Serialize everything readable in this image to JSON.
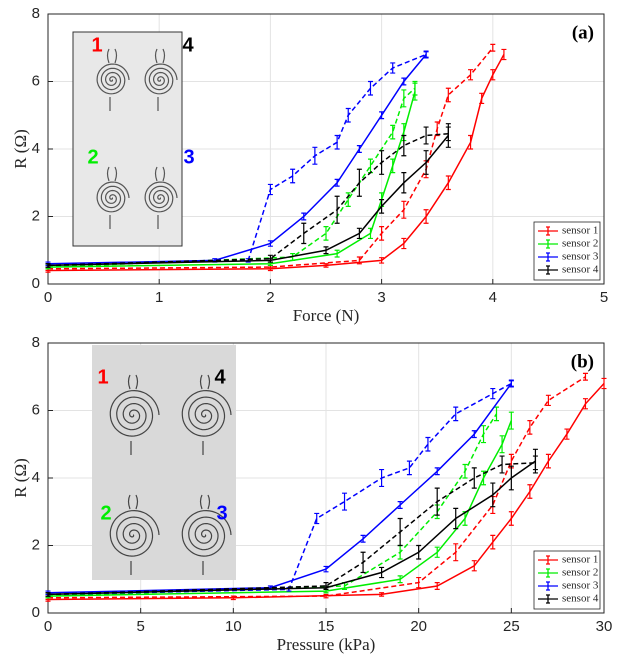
{
  "chart_data": [
    {
      "type": "line",
      "panel_label": "(a)",
      "xlabel": "Force (N)",
      "ylabel": "R (Ω)",
      "xlim": [
        0,
        5
      ],
      "ylim": [
        0,
        8
      ],
      "xticks": [
        0,
        1,
        2,
        3,
        4,
        5
      ],
      "yticks": [
        0,
        2,
        4,
        6,
        8
      ],
      "grid": true,
      "legend": "lower right",
      "inset_labels": [
        "1",
        "4",
        "2",
        "3"
      ],
      "inset_label_series": [
        0,
        3,
        1,
        2
      ],
      "series": [
        {
          "name": "sensor 1",
          "color": "#ff0000",
          "loading": {
            "x": [
              0,
              2,
              2.5,
              3,
              3.2,
              3.4,
              3.6,
              3.8,
              3.9,
              4.0,
              4.1
            ],
            "values": [
              0.4,
              0.45,
              0.55,
              0.7,
              1.2,
              2,
              3,
              4.2,
              5.5,
              6.2,
              6.8
            ],
            "errors": [
              0.05,
              0.05,
              0.05,
              0.08,
              0.15,
              0.2,
              0.2,
              0.2,
              0.15,
              0.15,
              0.15
            ]
          },
          "unloading": {
            "x": [
              0,
              2,
              2.8,
              3.0,
              3.2,
              3.4,
              3.5,
              3.6,
              3.8,
              4.0
            ],
            "values": [
              0.45,
              0.5,
              0.7,
              1.5,
              2.2,
              3.4,
              4.6,
              5.6,
              6.2,
              7.0
            ],
            "errors": [
              0.05,
              0.05,
              0.1,
              0.2,
              0.25,
              0.25,
              0.2,
              0.2,
              0.15,
              0.1
            ]
          }
        },
        {
          "name": "sensor 2",
          "color": "#00ee00",
          "loading": {
            "x": [
              0,
              2,
              2.6,
              2.9,
              3.0,
              3.1,
              3.2,
              3.3
            ],
            "values": [
              0.5,
              0.6,
              0.9,
              1.5,
              2.5,
              3.5,
              4.5,
              5.7
            ],
            "errors": [
              0.05,
              0.05,
              0.1,
              0.15,
              0.2,
              0.2,
              0.25,
              0.25
            ]
          },
          "unloading": {
            "x": [
              0,
              2.2,
              2.5,
              2.7,
              2.9,
              3.1,
              3.2,
              3.3
            ],
            "values": [
              0.5,
              0.8,
              1.5,
              2.5,
              3.5,
              4.5,
              5.5,
              5.8
            ],
            "errors": [
              0.05,
              0.1,
              0.2,
              0.2,
              0.2,
              0.2,
              0.25,
              0.2
            ]
          }
        },
        {
          "name": "sensor 3",
          "color": "#0000ff",
          "loading": {
            "x": [
              0,
              1.5,
              2,
              2.3,
              2.6,
              2.8,
              3.0,
              3.2,
              3.4
            ],
            "values": [
              0.6,
              0.7,
              1.2,
              2,
              3,
              4,
              5,
              6,
              6.8
            ],
            "errors": [
              0.05,
              0.05,
              0.08,
              0.1,
              0.1,
              0.1,
              0.1,
              0.1,
              0.08
            ]
          },
          "unloading": {
            "x": [
              0,
              1.8,
              2.0,
              2.2,
              2.4,
              2.6,
              2.7,
              2.9,
              3.1,
              3.4
            ],
            "values": [
              0.55,
              0.7,
              2.8,
              3.2,
              3.8,
              4.2,
              5.0,
              5.8,
              6.4,
              6.8
            ],
            "errors": [
              0.05,
              0.05,
              0.15,
              0.2,
              0.25,
              0.2,
              0.2,
              0.2,
              0.15,
              0.1
            ]
          }
        },
        {
          "name": "sensor 4",
          "color": "#000000",
          "loading": {
            "x": [
              0,
              2,
              2.5,
              2.8,
              3.0,
              3.2,
              3.4,
              3.6
            ],
            "values": [
              0.55,
              0.7,
              1.0,
              1.5,
              2.3,
              3.0,
              3.6,
              4.4
            ],
            "errors": [
              0.05,
              0.05,
              0.1,
              0.15,
              0.2,
              0.3,
              0.35,
              0.35
            ]
          },
          "unloading": {
            "x": [
              0,
              2,
              2.3,
              2.6,
              2.8,
              3.0,
              3.2,
              3.4,
              3.6
            ],
            "values": [
              0.55,
              0.75,
              1.5,
              2.2,
              3.0,
              3.6,
              4.1,
              4.4,
              4.45
            ],
            "errors": [
              0.05,
              0.1,
              0.3,
              0.4,
              0.4,
              0.35,
              0.3,
              0.25,
              0.2
            ]
          }
        }
      ]
    },
    {
      "type": "line",
      "panel_label": "(b)",
      "xlabel": "Pressure (kPa)",
      "ylabel": "R (Ω)",
      "xlim": [
        0,
        30
      ],
      "ylim": [
        0,
        8
      ],
      "xticks": [
        0,
        5,
        10,
        15,
        20,
        25,
        30
      ],
      "yticks": [
        0,
        2,
        4,
        6,
        8
      ],
      "grid": true,
      "legend": "lower right",
      "inset_labels": [
        "1",
        "4",
        "2",
        "3"
      ],
      "inset_label_series": [
        0,
        3,
        1,
        2
      ],
      "series": [
        {
          "name": "sensor 1",
          "color": "#ff0000",
          "loading": {
            "x": [
              0,
              10,
              18,
              21,
              23,
              24,
              25,
              26,
              27,
              28,
              29,
              30
            ],
            "values": [
              0.4,
              0.45,
              0.55,
              0.8,
              1.4,
              2.1,
              2.8,
              3.6,
              4.5,
              5.3,
              6.2,
              6.8
            ],
            "errors": [
              0.05,
              0.05,
              0.05,
              0.1,
              0.15,
              0.2,
              0.2,
              0.2,
              0.2,
              0.15,
              0.15,
              0.15
            ]
          },
          "unloading": {
            "x": [
              0,
              15,
              20,
              22,
              24,
              25,
              26,
              27,
              29
            ],
            "values": [
              0.45,
              0.5,
              0.9,
              1.8,
              3.2,
              4.5,
              5.5,
              6.3,
              7.0
            ],
            "errors": [
              0.05,
              0.05,
              0.15,
              0.25,
              0.25,
              0.2,
              0.2,
              0.15,
              0.1
            ]
          }
        },
        {
          "name": "sensor 2",
          "color": "#00ee00",
          "loading": {
            "x": [
              0,
              15,
              19,
              21,
              22.5,
              23.5,
              24.5,
              25
            ],
            "values": [
              0.5,
              0.65,
              1.0,
              1.8,
              2.8,
              4.0,
              5.0,
              5.7
            ],
            "errors": [
              0.05,
              0.05,
              0.1,
              0.15,
              0.2,
              0.2,
              0.25,
              0.25
            ]
          },
          "unloading": {
            "x": [
              0,
              16,
              19,
              21,
              22.5,
              23.5,
              24.2
            ],
            "values": [
              0.5,
              0.8,
              1.8,
              3.0,
              4.2,
              5.3,
              5.9
            ],
            "errors": [
              0.05,
              0.1,
              0.2,
              0.2,
              0.2,
              0.25,
              0.2
            ]
          }
        },
        {
          "name": "sensor 3",
          "color": "#0000ff",
          "loading": {
            "x": [
              0,
              12,
              15,
              17,
              19,
              21,
              23,
              25
            ],
            "values": [
              0.6,
              0.75,
              1.3,
              2.2,
              3.2,
              4.2,
              5.3,
              6.8
            ],
            "errors": [
              0.05,
              0.05,
              0.08,
              0.1,
              0.1,
              0.1,
              0.1,
              0.08
            ]
          },
          "unloading": {
            "x": [
              0,
              13,
              14.5,
              16,
              18,
              19.5,
              20.5,
              22,
              24,
              25
            ],
            "values": [
              0.55,
              0.7,
              2.8,
              3.3,
              4.0,
              4.3,
              5.0,
              5.9,
              6.5,
              6.8
            ],
            "errors": [
              0.05,
              0.05,
              0.15,
              0.25,
              0.25,
              0.2,
              0.2,
              0.2,
              0.15,
              0.1
            ]
          }
        },
        {
          "name": "sensor 4",
          "color": "#000000",
          "loading": {
            "x": [
              0,
              15,
              18,
              20,
              22,
              24,
              25,
              26.3
            ],
            "values": [
              0.55,
              0.75,
              1.2,
              1.8,
              2.8,
              3.5,
              4.0,
              4.5
            ],
            "errors": [
              0.05,
              0.05,
              0.15,
              0.2,
              0.3,
              0.35,
              0.35,
              0.35
            ]
          },
          "unloading": {
            "x": [
              0,
              15,
              17,
              19,
              21,
              23,
              24.5,
              26.3
            ],
            "values": [
              0.55,
              0.8,
              1.5,
              2.4,
              3.3,
              4.0,
              4.4,
              4.45
            ],
            "errors": [
              0.05,
              0.1,
              0.3,
              0.4,
              0.4,
              0.3,
              0.25,
              0.2
            ]
          }
        }
      ]
    }
  ]
}
